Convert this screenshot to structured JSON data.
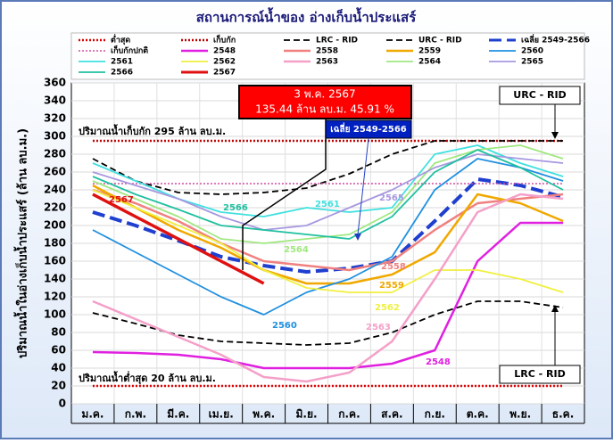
{
  "chart_data": {
    "type": "line",
    "title": "สถานการณ์น้ำของ อ่างเก็บน้ำประแสร์",
    "y_label": "ปริมาณน้ำในอ่างเก็บน้ำประแสร์ (ล้าน ลบ.ม.)",
    "categories": [
      "ม.ค.",
      "ก.พ.",
      "มี.ค.",
      "เม.ย.",
      "พ.ค.",
      "มิ.ย.",
      "ก.ค.",
      "ส.ค.",
      "ก.ย.",
      "ต.ค.",
      "พ.ย.",
      "ธ.ค."
    ],
    "ylim": [
      0,
      360
    ],
    "yticks": [
      0,
      20,
      40,
      60,
      80,
      100,
      120,
      140,
      160,
      180,
      200,
      220,
      240,
      260,
      280,
      300,
      320,
      340,
      360
    ],
    "grid": true,
    "annotations": {
      "date": "3 พ.ค. 2567",
      "current": "135.44 ล้าน ลบ.ม. 45.91 %",
      "average": "เฉลี่ย 2549-2566",
      "urc": "URC - RID",
      "lrc": "LRC - RID",
      "storage": "ปริมาณน้ำเก็บกัก 295 ล้าน ลบ.ม.",
      "minimum": "ปริมาณน้ำต่ำสุด 20 ล้าน ลบ.ม."
    },
    "series": [
      {
        "name": "ต่ำสุด",
        "color": "#e00000",
        "dash": "dotted",
        "width": 2.5,
        "values": [
          20,
          20,
          20,
          20,
          20,
          20,
          20,
          20,
          20,
          20,
          20,
          20
        ]
      },
      {
        "name": "เก็บกัก",
        "color": "#c00000",
        "dash": "dotted",
        "width": 2.5,
        "values": [
          295,
          295,
          295,
          295,
          295,
          295,
          295,
          295,
          295,
          295,
          295,
          295
        ]
      },
      {
        "name": "LRC - RID",
        "color": "#000000",
        "dash": "dashed",
        "width": 1.8,
        "values": [
          102,
          90,
          77,
          70,
          68,
          66,
          68,
          80,
          100,
          115,
          115,
          108
        ]
      },
      {
        "name": "URC - RID",
        "color": "#000000",
        "dash": "dashed",
        "width": 1.8,
        "values": [
          275,
          250,
          237,
          235,
          237,
          242,
          258,
          280,
          295,
          295,
          295,
          295
        ]
      },
      {
        "name": "เฉลี่ย 2549-2566",
        "color": "#1f3fcf",
        "dash": "longdash",
        "width": 4,
        "values": [
          215,
          200,
          183,
          165,
          155,
          148,
          152,
          160,
          205,
          252,
          245,
          232
        ]
      },
      {
        "name": "เก็บกักปกติ",
        "color": "#d04aa0",
        "dash": "dotted",
        "width": 1.5,
        "values": [
          247,
          247,
          247,
          247,
          247,
          247,
          247,
          247,
          247,
          247,
          247,
          247
        ]
      },
      {
        "name": "2548",
        "color": "#e020e0",
        "dash": "solid",
        "width": 2.5,
        "values": [
          58,
          57,
          55,
          50,
          40,
          40,
          40,
          45,
          60,
          160,
          203,
          203
        ]
      },
      {
        "name": "2558",
        "color": "#f08080",
        "dash": "solid",
        "width": 2.5,
        "values": [
          240,
          225,
          205,
          180,
          160,
          155,
          150,
          160,
          195,
          225,
          230,
          235
        ]
      },
      {
        "name": "2559",
        "color": "#f0a800",
        "dash": "solid",
        "width": 2.5,
        "values": [
          245,
          220,
          195,
          175,
          150,
          135,
          135,
          145,
          170,
          235,
          225,
          205
        ]
      },
      {
        "name": "2560",
        "color": "#2090e0",
        "dash": "solid",
        "width": 1.8,
        "values": [
          195,
          170,
          145,
          120,
          100,
          125,
          140,
          165,
          240,
          275,
          265,
          250
        ]
      },
      {
        "name": "2561",
        "color": "#40e0e0",
        "dash": "solid",
        "width": 1.8,
        "values": [
          270,
          250,
          230,
          215,
          210,
          220,
          215,
          220,
          280,
          290,
          270,
          255
        ]
      },
      {
        "name": "2562",
        "color": "#f0f040",
        "dash": "solid",
        "width": 1.8,
        "values": [
          240,
          220,
          200,
          180,
          150,
          130,
          125,
          125,
          150,
          150,
          140,
          125
        ]
      },
      {
        "name": "2563",
        "color": "#f4a0c8",
        "dash": "solid",
        "width": 2.5,
        "values": [
          115,
          95,
          75,
          55,
          30,
          25,
          35,
          70,
          140,
          215,
          235,
          230
        ]
      },
      {
        "name": "2564",
        "color": "#a0e880",
        "dash": "solid",
        "width": 1.8,
        "values": [
          250,
          230,
          210,
          185,
          180,
          185,
          190,
          215,
          270,
          285,
          290,
          275
        ]
      },
      {
        "name": "2565",
        "color": "#a898e0",
        "dash": "solid",
        "width": 1.8,
        "values": [
          260,
          245,
          230,
          210,
          195,
          200,
          220,
          240,
          265,
          280,
          275,
          270
        ]
      },
      {
        "name": "2566",
        "color": "#20c0a0",
        "dash": "solid",
        "width": 1.8,
        "values": [
          255,
          235,
          218,
          200,
          195,
          190,
          185,
          210,
          260,
          285,
          265,
          240
        ]
      },
      {
        "name": "2567",
        "color": "#e01010",
        "dash": "solid",
        "width": 3.5,
        "values": [
          235,
          210,
          185,
          160,
          135,
          null,
          null,
          null,
          null,
          null,
          null,
          null
        ]
      }
    ]
  }
}
